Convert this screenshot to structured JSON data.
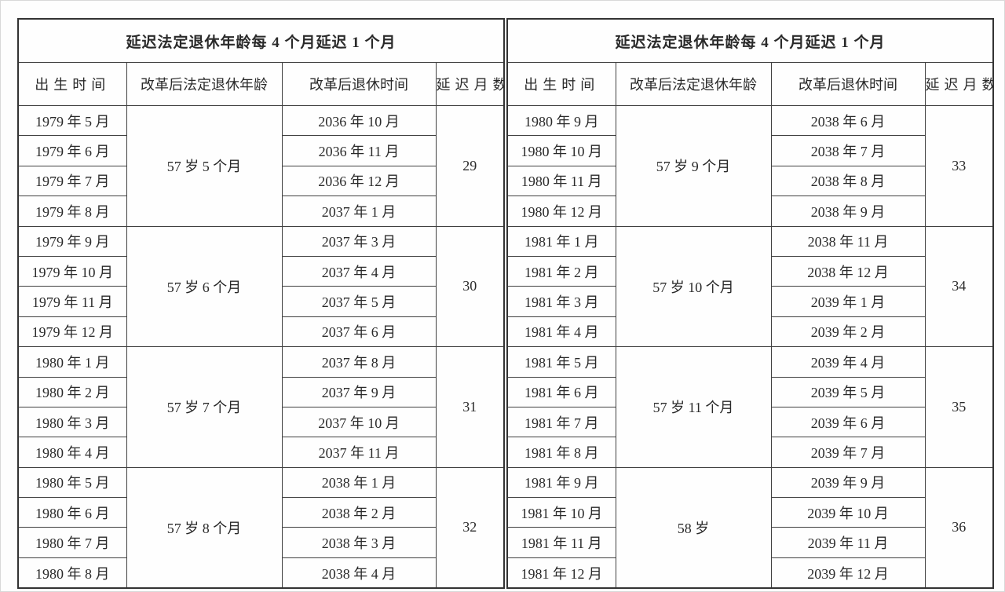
{
  "page": {
    "background": "#fefefe",
    "frame_border_color": "#d9d9d9",
    "table_border_color": "#404040",
    "text_color": "#2a2a2a"
  },
  "tables": [
    {
      "title": "延迟法定退休年龄每 4 个月延迟 1 个月",
      "headers": [
        "出生时间",
        "改革后法定退休年龄",
        "改革后退休时间",
        "延迟月数"
      ],
      "groups": [
        {
          "births": [
            "1979 年 5 月",
            "1979 年 6 月",
            "1979 年 7 月",
            "1979 年 8 月"
          ],
          "age": "57 岁 5 个月",
          "dates": [
            "2036 年 10 月",
            "2036 年 11 月",
            "2036 年 12 月",
            "2037 年 1 月"
          ],
          "delay": "29"
        },
        {
          "births": [
            "1979 年 9 月",
            "1979 年 10 月",
            "1979 年 11 月",
            "1979 年 12 月"
          ],
          "age": "57 岁 6 个月",
          "dates": [
            "2037 年 3 月",
            "2037 年 4 月",
            "2037 年 5 月",
            "2037 年 6 月"
          ],
          "delay": "30"
        },
        {
          "births": [
            "1980 年 1 月",
            "1980 年 2 月",
            "1980 年 3 月",
            "1980 年 4 月"
          ],
          "age": "57 岁 7 个月",
          "dates": [
            "2037 年 8 月",
            "2037 年 9 月",
            "2037 年 10 月",
            "2037 年 11 月"
          ],
          "delay": "31"
        },
        {
          "births": [
            "1980 年 5 月",
            "1980 年 6 月",
            "1980 年 7 月",
            "1980 年 8 月"
          ],
          "age": "57 岁 8 个月",
          "dates": [
            "2038 年 1 月",
            "2038 年 2 月",
            "2038 年 3 月",
            "2038 年 4 月"
          ],
          "delay": "32"
        }
      ]
    },
    {
      "title": "延迟法定退休年龄每 4 个月延迟 1 个月",
      "headers": [
        "出生时间",
        "改革后法定退休年龄",
        "改革后退休时间",
        "延迟月数"
      ],
      "groups": [
        {
          "births": [
            "1980 年 9 月",
            "1980 年 10 月",
            "1980 年 11 月",
            "1980 年 12 月"
          ],
          "age": "57 岁 9 个月",
          "dates": [
            "2038 年 6 月",
            "2038 年 7 月",
            "2038 年 8 月",
            "2038 年 9 月"
          ],
          "delay": "33"
        },
        {
          "births": [
            "1981 年 1 月",
            "1981 年 2 月",
            "1981 年 3 月",
            "1981 年 4 月"
          ],
          "age": "57 岁 10 个月",
          "dates": [
            "2038 年 11 月",
            "2038 年 12 月",
            "2039 年 1 月",
            "2039 年 2 月"
          ],
          "delay": "34"
        },
        {
          "births": [
            "1981 年 5 月",
            "1981 年 6 月",
            "1981 年 7 月",
            "1981 年 8 月"
          ],
          "age": "57 岁 11 个月",
          "dates": [
            "2039 年 4 月",
            "2039 年 5 月",
            "2039 年 6 月",
            "2039 年 7 月"
          ],
          "delay": "35"
        },
        {
          "births": [
            "1981 年 9 月",
            "1981 年 10 月",
            "1981 年 11 月",
            "1981 年 12 月"
          ],
          "age": "58 岁",
          "dates": [
            "2039 年 9 月",
            "2039 年 10 月",
            "2039 年 11 月",
            "2039 年 12 月"
          ],
          "delay": "36"
        }
      ]
    }
  ]
}
